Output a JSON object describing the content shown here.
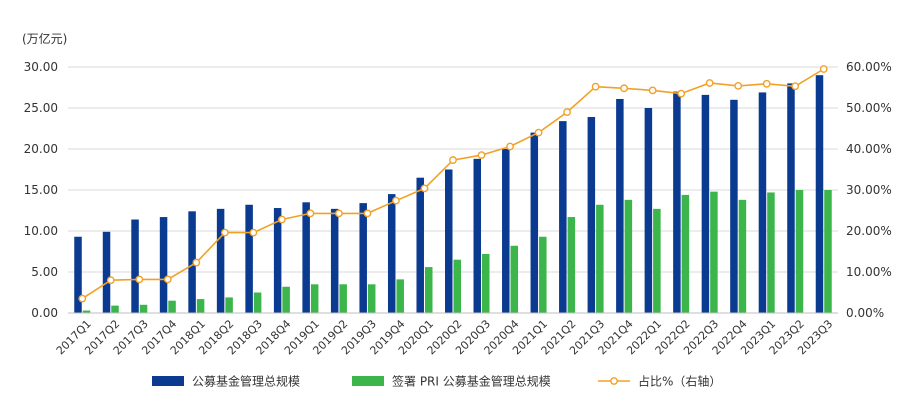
{
  "chart_data": {
    "type": "bar",
    "unit_label": "(万亿元)",
    "categories": [
      "2017Q1",
      "2017Q2",
      "2017Q3",
      "2017Q4",
      "2018Q1",
      "2018Q2",
      "2018Q3",
      "2018Q4",
      "2019Q1",
      "2019Q2",
      "2019Q3",
      "2019Q4",
      "2020Q1",
      "2020Q2",
      "2020Q3",
      "2020Q4",
      "2021Q1",
      "2021Q2",
      "2021Q3",
      "2021Q4",
      "2022Q1",
      "2022Q2",
      "2022Q3",
      "2022Q4",
      "2023Q1",
      "2023Q2",
      "2023Q3"
    ],
    "series": [
      {
        "name": "公募基金管理总规模",
        "kind": "bar",
        "axis": "left",
        "color": "#0b3a91",
        "values": [
          9.3,
          9.9,
          11.4,
          11.7,
          12.4,
          12.7,
          13.2,
          12.8,
          13.5,
          12.7,
          13.4,
          14.5,
          16.5,
          17.5,
          18.8,
          20.0,
          22.0,
          23.4,
          23.9,
          26.1,
          25.0,
          27.0,
          26.6,
          26.0,
          26.9,
          28.0,
          29.0
        ]
      },
      {
        "name": "签署 PRI 公募基金管理总规模",
        "kind": "bar",
        "axis": "left",
        "color": "#3cb54a",
        "values": [
          0.3,
          0.9,
          1.0,
          1.5,
          1.7,
          1.9,
          2.5,
          3.2,
          3.5,
          3.5,
          3.5,
          4.1,
          5.6,
          6.5,
          7.2,
          8.2,
          9.3,
          11.7,
          13.2,
          13.8,
          12.7,
          14.4,
          14.8,
          13.8,
          14.7,
          15.0,
          15.0
        ]
      },
      {
        "name": "占比%（右轴）",
        "kind": "line",
        "axis": "right",
        "color": "#f2a126",
        "values": [
          3.5,
          8.0,
          8.2,
          8.2,
          12.3,
          19.6,
          19.6,
          22.8,
          24.3,
          24.3,
          24.3,
          27.4,
          30.4,
          37.3,
          38.5,
          40.6,
          44.0,
          49.0,
          55.2,
          54.8,
          54.3,
          53.5,
          56.1,
          55.4,
          55.9,
          55.3,
          59.5
        ]
      }
    ],
    "y_left": {
      "min": 0,
      "max": 30,
      "ticks": [
        "0.00",
        "5.00",
        "10.00",
        "15.00",
        "20.00",
        "25.00",
        "30.00"
      ]
    },
    "y_right": {
      "min": 0,
      "max": 60,
      "ticks": [
        "0.00%",
        "10.00%",
        "20.00%",
        "30.00%",
        "40.00%",
        "50.00%",
        "60.00%"
      ]
    },
    "grid": true,
    "legend_position": "bottom"
  }
}
